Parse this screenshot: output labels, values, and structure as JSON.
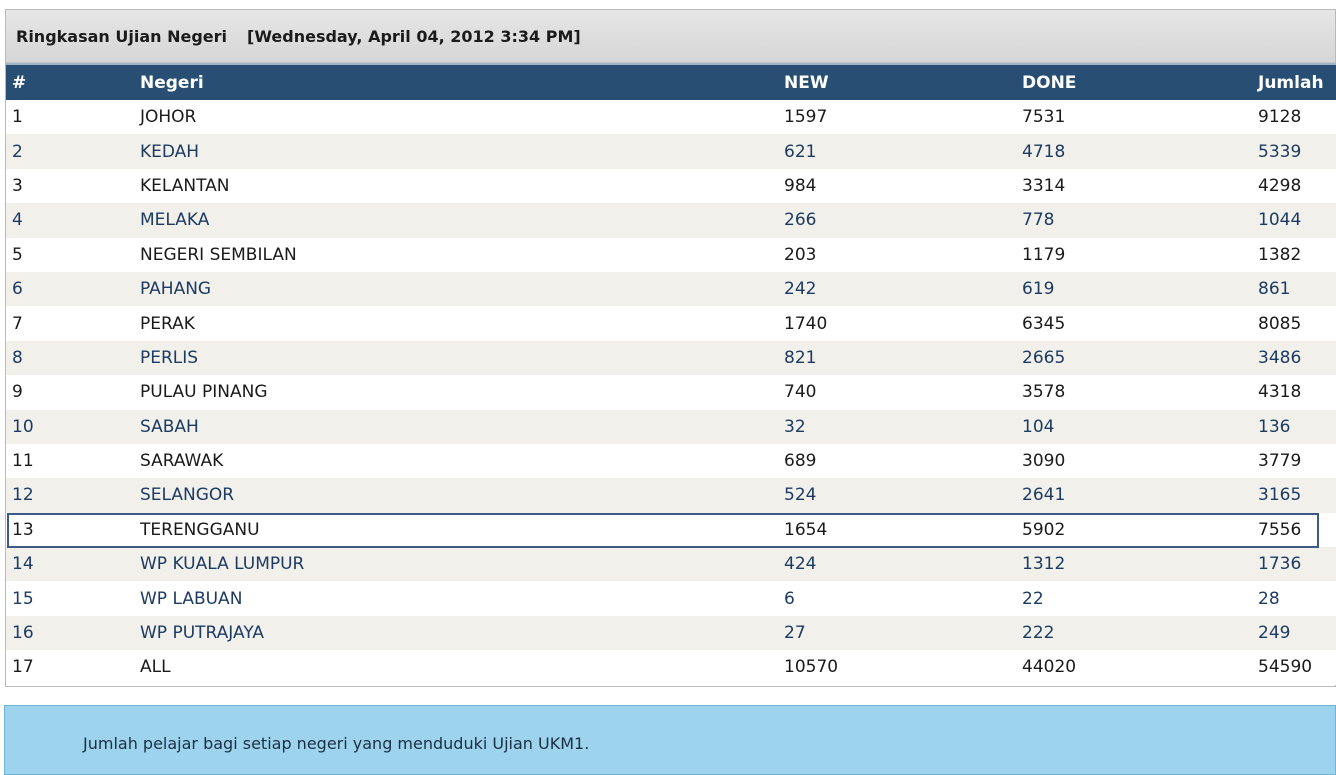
{
  "header": {
    "title": "Ringkasan Ujian Negeri",
    "timestamp": "[Wednesday, April 04, 2012 3:34 PM]"
  },
  "table": {
    "columns": [
      "#",
      "Negeri",
      "NEW",
      "DONE",
      "Jumlah"
    ],
    "rows": [
      {
        "no": "1",
        "negeri": "JOHOR",
        "new": "1597",
        "done": "7531",
        "jumlah": "9128"
      },
      {
        "no": "2",
        "negeri": "KEDAH",
        "new": "621",
        "done": "4718",
        "jumlah": "5339"
      },
      {
        "no": "3",
        "negeri": "KELANTAN",
        "new": "984",
        "done": "3314",
        "jumlah": "4298"
      },
      {
        "no": "4",
        "negeri": "MELAKA",
        "new": "266",
        "done": "778",
        "jumlah": "1044"
      },
      {
        "no": "5",
        "negeri": "NEGERI SEMBILAN",
        "new": "203",
        "done": "1179",
        "jumlah": "1382"
      },
      {
        "no": "6",
        "negeri": "PAHANG",
        "new": "242",
        "done": "619",
        "jumlah": "861"
      },
      {
        "no": "7",
        "negeri": "PERAK",
        "new": "1740",
        "done": "6345",
        "jumlah": "8085"
      },
      {
        "no": "8",
        "negeri": "PERLIS",
        "new": "821",
        "done": "2665",
        "jumlah": "3486"
      },
      {
        "no": "9",
        "negeri": "PULAU PINANG",
        "new": "740",
        "done": "3578",
        "jumlah": "4318"
      },
      {
        "no": "10",
        "negeri": "SABAH",
        "new": "32",
        "done": "104",
        "jumlah": "136"
      },
      {
        "no": "11",
        "negeri": "SARAWAK",
        "new": "689",
        "done": "3090",
        "jumlah": "3779"
      },
      {
        "no": "12",
        "negeri": "SELANGOR",
        "new": "524",
        "done": "2641",
        "jumlah": "3165"
      },
      {
        "no": "13",
        "negeri": "TERENGGANU",
        "new": "1654",
        "done": "5902",
        "jumlah": "7556"
      },
      {
        "no": "14",
        "negeri": "WP KUALA LUMPUR",
        "new": "424",
        "done": "1312",
        "jumlah": "1736"
      },
      {
        "no": "15",
        "negeri": "WP LABUAN",
        "new": "6",
        "done": "22",
        "jumlah": "28"
      },
      {
        "no": "16",
        "negeri": "WP PUTRAJAYA",
        "new": "27",
        "done": "222",
        "jumlah": "249"
      },
      {
        "no": "17",
        "negeri": "ALL",
        "new": "10570",
        "done": "44020",
        "jumlah": "54590"
      }
    ],
    "highlighted_row": "13"
  },
  "info": {
    "text": "Jumlah pelajar bagi setiap negeri yang menduduki Ujian UKM1."
  },
  "colors": {
    "header_bg": "#284f73",
    "row_alt": "#f1f0eb",
    "link": "#1d3b62",
    "info_bg": "#9ed3ee",
    "highlight_border": "#3c5a85"
  }
}
